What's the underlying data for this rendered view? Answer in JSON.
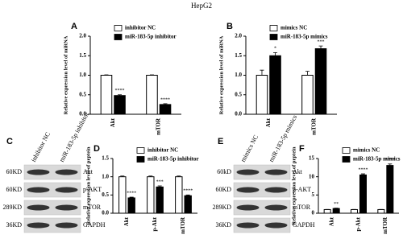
{
  "title": "HepG2",
  "chart_data": [
    {
      "type": "bar",
      "panel": "A",
      "ylabel": "Relative expression level of miRNA",
      "categories": [
        "Akt",
        "mTOR"
      ],
      "series": [
        {
          "name": "inhibitor NC",
          "color": "#ffffff",
          "values": [
            1.0,
            1.0
          ],
          "errors": [
            0.01,
            0.01
          ],
          "annotations": [
            null,
            null
          ]
        },
        {
          "name": "miR-183-5p inhibitor",
          "color": "#000000",
          "values": [
            0.48,
            0.25
          ],
          "errors": [
            0.02,
            0.02
          ],
          "annotations": [
            "****",
            "****"
          ]
        }
      ],
      "ylim": [
        0,
        2
      ],
      "yticks": [
        {
          "value": 0,
          "label": "0.0"
        },
        {
          "value": 0.5,
          "label": "0.5"
        },
        {
          "value": 1,
          "label": "1.0"
        },
        {
          "value": 1.5,
          "label": "1.5"
        },
        {
          "value": 2,
          "label": "2.0"
        }
      ]
    },
    {
      "type": "bar",
      "panel": "B",
      "ylabel": "Relative expression level of miRNA",
      "categories": [
        "Akt",
        "mTOR"
      ],
      "series": [
        {
          "name": "mimics NC",
          "color": "#ffffff",
          "values": [
            1.0,
            1.0
          ],
          "errors": [
            0.13,
            0.1
          ],
          "annotations": [
            null,
            null
          ]
        },
        {
          "name": "miR-183-5p mimics",
          "color": "#000000",
          "values": [
            1.5,
            1.68
          ],
          "errors": [
            0.08,
            0.07
          ],
          "annotations": [
            "*",
            "***"
          ]
        }
      ],
      "ylim": [
        0,
        2
      ],
      "yticks": [
        {
          "value": 0,
          "label": "0.0"
        },
        {
          "value": 0.5,
          "label": "0.5"
        },
        {
          "value": 1,
          "label": "1.0"
        },
        {
          "value": 1.5,
          "label": "1.5"
        },
        {
          "value": 2,
          "label": "2.0"
        }
      ]
    },
    {
      "type": "bar",
      "panel": "D",
      "ylabel": "Relative expression level of prptein",
      "categories": [
        "Akt",
        "p-Akt",
        "mTOR"
      ],
      "series": [
        {
          "name": "inhibitor NC",
          "color": "#ffffff",
          "values": [
            1.0,
            1.0,
            1.0
          ],
          "errors": [
            0.02,
            0.02,
            0.02
          ],
          "annotations": [
            null,
            null,
            null
          ]
        },
        {
          "name": "miR-183-5p inhibitor",
          "color": "#000000",
          "values": [
            0.42,
            0.72,
            0.48
          ],
          "errors": [
            0.02,
            0.03,
            0.02
          ],
          "annotations": [
            "****",
            "***",
            "****"
          ]
        }
      ],
      "ylim": [
        0,
        1.5
      ],
      "yticks": [
        {
          "value": 0,
          "label": "0.0"
        },
        {
          "value": 0.5,
          "label": "0.5"
        },
        {
          "value": 1,
          "label": "1.0"
        },
        {
          "value": 1.5,
          "label": "1.5"
        }
      ]
    },
    {
      "type": "bar",
      "panel": "F",
      "ylabel": "Relative expression level of prptein",
      "categories": [
        "Akt",
        "p-Akt",
        "mTOR"
      ],
      "series": [
        {
          "name": "mimics NC",
          "color": "#ffffff",
          "values": [
            1.0,
            1.0,
            1.0
          ],
          "errors": [
            0.05,
            0.05,
            0.05
          ],
          "annotations": [
            null,
            null,
            null
          ]
        },
        {
          "name": "miR-183-5p mimics",
          "color": "#000000",
          "values": [
            1.3,
            10.5,
            13.1
          ],
          "errors": [
            0.1,
            0.3,
            0.4
          ],
          "annotations": [
            "**",
            "****",
            "****"
          ]
        }
      ],
      "ylim": [
        0,
        15
      ],
      "yticks": [
        0,
        5,
        10,
        15
      ]
    }
  ],
  "blots": [
    {
      "panel": "C",
      "lanes": [
        "inhibitor NC",
        "miR-183-5p inhibitor"
      ],
      "rows": [
        {
          "mw": "60KD",
          "protein": "Akt"
        },
        {
          "mw": "60KD",
          "protein": "p-AKT"
        },
        {
          "mw": "289KD",
          "protein": "mTOR"
        },
        {
          "mw": "36KD",
          "protein": "GAPDH"
        }
      ]
    },
    {
      "panel": "E",
      "lanes": [
        "mimics NC",
        "miR-183-5p mimics"
      ],
      "rows": [
        {
          "mw": "60kD",
          "protein": "Akt"
        },
        {
          "mw": "60KD",
          "protein": "p-AKT"
        },
        {
          "mw": "289KD",
          "protein": "mTOR"
        },
        {
          "mw": "36KD",
          "protein": "GAPDH"
        }
      ]
    }
  ]
}
